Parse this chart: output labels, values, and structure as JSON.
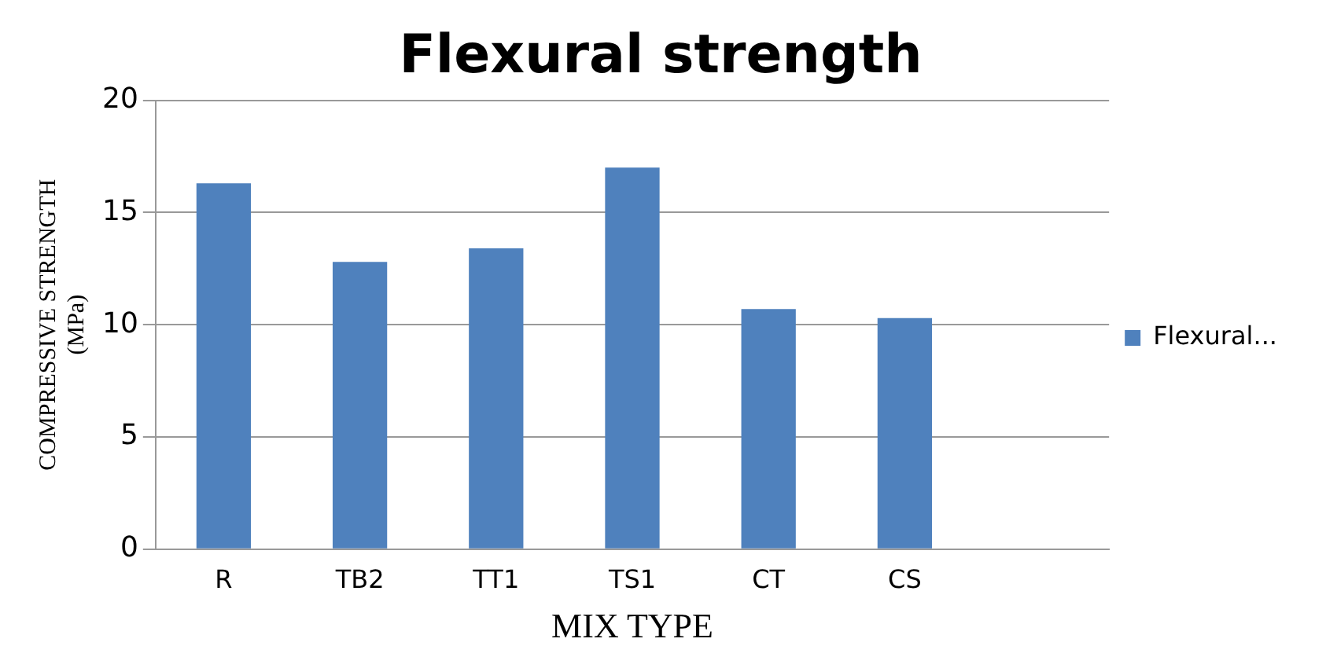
{
  "chart_data": {
    "type": "bar",
    "title": "Flexural strength",
    "xlabel": "MIX TYPE",
    "ylabel": "COMPRESSIVE STRENGTH (MPa)",
    "categories": [
      "R",
      "TB2",
      "TT1",
      "TS1",
      "CT",
      "CS",
      null
    ],
    "series": [
      {
        "name": "Flexural...",
        "color": "#4f81bd",
        "values": [
          16.3,
          12.8,
          13.4,
          17.0,
          10.7,
          10.3,
          null
        ]
      }
    ],
    "ylim": [
      0,
      20
    ],
    "yticks": [
      0,
      5,
      10,
      15,
      20
    ],
    "grid": "y",
    "legend": "right"
  }
}
